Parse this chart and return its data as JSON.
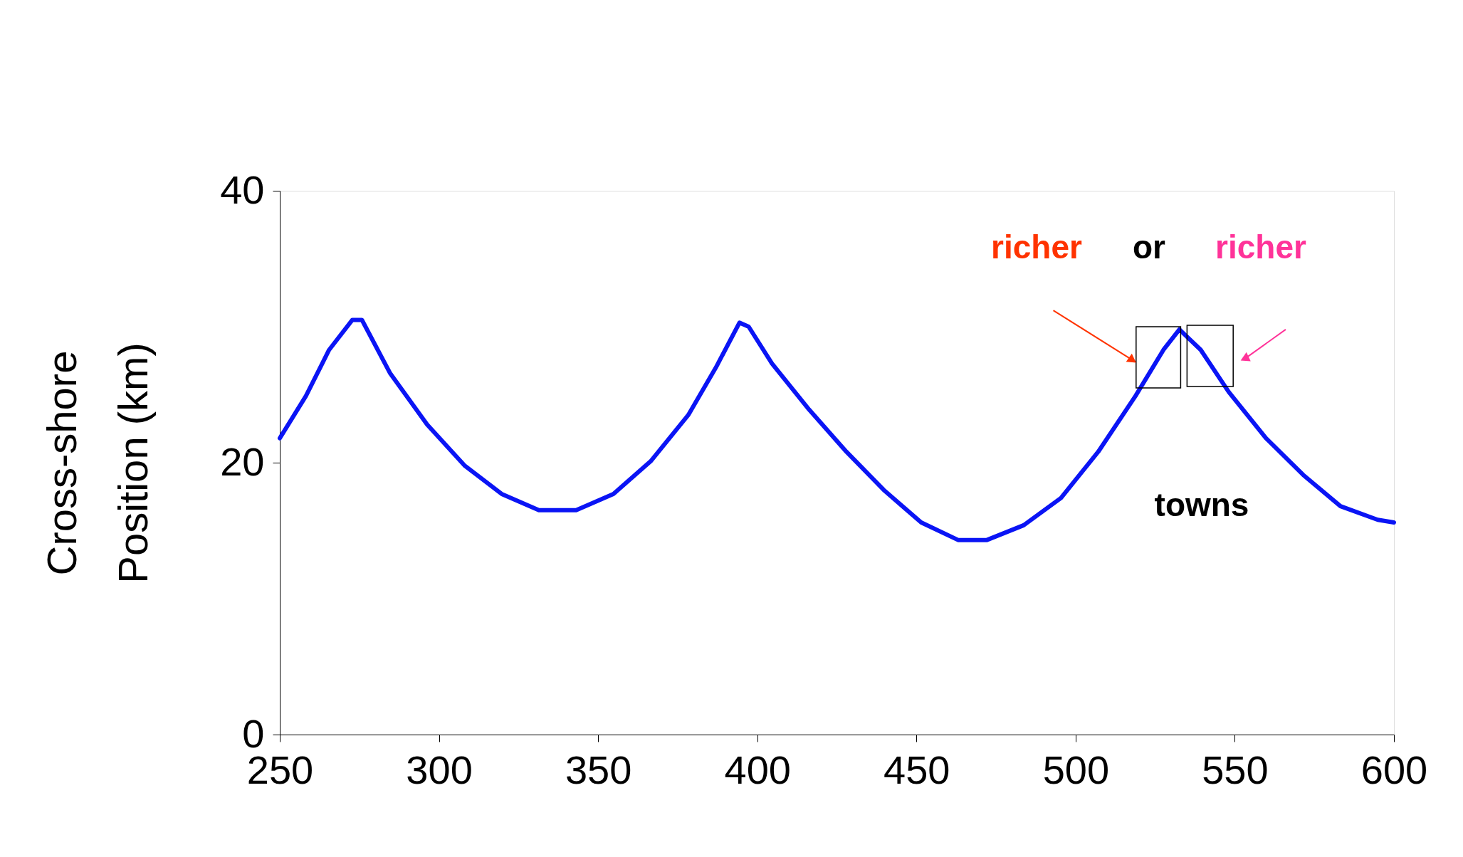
{
  "chart_data": {
    "type": "line",
    "ylabel": "Cross-shore\nPosition  (km)",
    "xlim": [
      250,
      600
    ],
    "xticks": [
      250,
      300,
      350,
      400,
      450,
      500,
      550,
      600
    ],
    "ylim": [
      0,
      40
    ],
    "yticks": [
      0,
      20,
      40
    ],
    "grid": false,
    "marker": "none",
    "line_style": "solid",
    "series": [
      {
        "color": "#0a14f5",
        "x": [
          250,
          258.2,
          265.5,
          272.8,
          275.8,
          284.6,
          296.3,
          308,
          319.7,
          331.4,
          343.1,
          354.8,
          366.5,
          378.3,
          387,
          394.4,
          397.3,
          404.6,
          416.3,
          428,
          439.7,
          451.5,
          463.2,
          472,
          483.7,
          495.4,
          507.1,
          518.8,
          527.6,
          532.6,
          539.3,
          548.1,
          559.8,
          571.5,
          583.2,
          594.9,
          600
        ],
        "values": [
          21.8,
          24.9,
          28.3,
          30.5,
          30.5,
          26.6,
          22.8,
          19.8,
          17.7,
          16.5,
          16.5,
          17.7,
          20.1,
          23.5,
          27,
          30.3,
          30,
          27.3,
          23.9,
          20.8,
          18,
          15.6,
          14.3,
          14.3,
          15.4,
          17.4,
          20.8,
          24.9,
          28.3,
          29.8,
          28.3,
          25.2,
          21.8,
          19.1,
          16.8,
          15.8,
          15.6
        ]
      }
    ],
    "annotations": [
      "richer",
      "or",
      "richer",
      "towns"
    ]
  }
}
